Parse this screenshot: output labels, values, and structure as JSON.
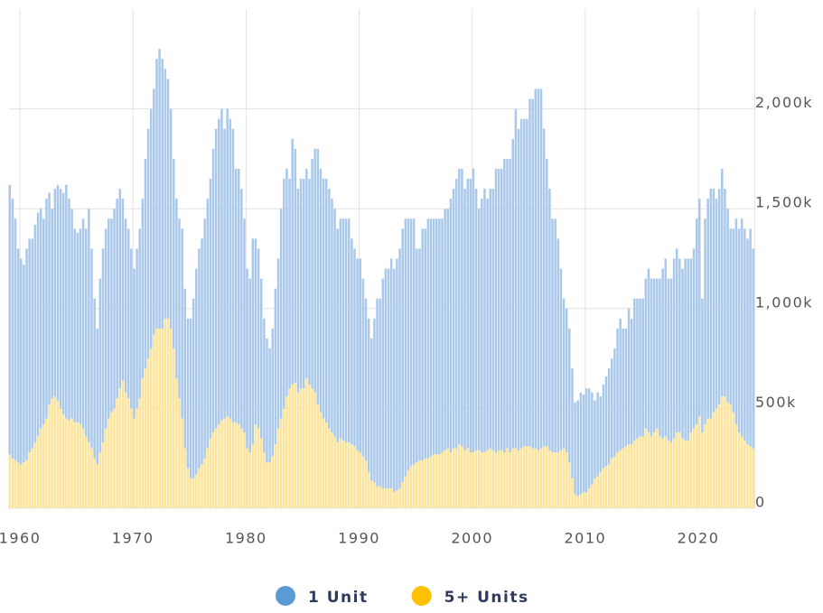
{
  "chart_data": {
    "type": "stacked-bar",
    "stacking": "normal",
    "x": [
      1959,
      1959.25,
      1959.5,
      1959.75,
      1960,
      1960.25,
      1960.5,
      1960.75,
      1961,
      1961.25,
      1961.5,
      1961.75,
      1962,
      1962.25,
      1962.5,
      1962.75,
      1963,
      1963.25,
      1963.5,
      1963.75,
      1964,
      1964.25,
      1964.5,
      1964.75,
      1965,
      1965.25,
      1965.5,
      1965.75,
      1966,
      1966.25,
      1966.5,
      1966.75,
      1967,
      1967.25,
      1967.5,
      1967.75,
      1968,
      1968.25,
      1968.5,
      1968.75,
      1969,
      1969.25,
      1969.5,
      1969.75,
      1970,
      1970.25,
      1970.5,
      1970.75,
      1971,
      1971.25,
      1971.5,
      1971.75,
      1972,
      1972.25,
      1972.5,
      1972.75,
      1973,
      1973.25,
      1973.5,
      1973.75,
      1974,
      1974.25,
      1974.5,
      1974.75,
      1975,
      1975.25,
      1975.5,
      1975.75,
      1976,
      1976.25,
      1976.5,
      1976.75,
      1977,
      1977.25,
      1977.5,
      1977.75,
      1978,
      1978.25,
      1978.5,
      1978.75,
      1979,
      1979.25,
      1979.5,
      1979.75,
      1980,
      1980.25,
      1980.5,
      1980.75,
      1981,
      1981.25,
      1981.5,
      1981.75,
      1982,
      1982.25,
      1982.5,
      1982.75,
      1983,
      1983.25,
      1983.5,
      1983.75,
      1984,
      1984.25,
      1984.5,
      1984.75,
      1985,
      1985.25,
      1985.5,
      1985.75,
      1986,
      1986.25,
      1986.5,
      1986.75,
      1987,
      1987.25,
      1987.5,
      1987.75,
      1988,
      1988.25,
      1988.5,
      1988.75,
      1989,
      1989.25,
      1989.5,
      1989.75,
      1990,
      1990.25,
      1990.5,
      1990.75,
      1991,
      1991.25,
      1991.5,
      1991.75,
      1992,
      1992.25,
      1992.5,
      1992.75,
      1993,
      1993.25,
      1993.5,
      1993.75,
      1994,
      1994.25,
      1994.5,
      1994.75,
      1995,
      1995.25,
      1995.5,
      1995.75,
      1996,
      1996.25,
      1996.5,
      1996.75,
      1997,
      1997.25,
      1997.5,
      1997.75,
      1998,
      1998.25,
      1998.5,
      1998.75,
      1999,
      1999.25,
      1999.5,
      1999.75,
      2000,
      2000.25,
      2000.5,
      2000.75,
      2001,
      2001.25,
      2001.5,
      2001.75,
      2002,
      2002.25,
      2002.5,
      2002.75,
      2003,
      2003.25,
      2003.5,
      2003.75,
      2004,
      2004.25,
      2004.5,
      2004.75,
      2005,
      2005.25,
      2005.5,
      2005.75,
      2006,
      2006.25,
      2006.5,
      2006.75,
      2007,
      2007.25,
      2007.5,
      2007.75,
      2008,
      2008.25,
      2008.5,
      2008.75,
      2009,
      2009.25,
      2009.5,
      2009.75,
      2010,
      2010.25,
      2010.5,
      2010.75,
      2011,
      2011.25,
      2011.5,
      2011.75,
      2012,
      2012.25,
      2012.5,
      2012.75,
      2013,
      2013.25,
      2013.5,
      2013.75,
      2014,
      2014.25,
      2014.5,
      2014.75,
      2015,
      2015.25,
      2015.5,
      2015.75,
      2016,
      2016.25,
      2016.5,
      2016.75,
      2017,
      2017.25,
      2017.5,
      2017.75,
      2018,
      2018.25,
      2018.5,
      2018.75,
      2019,
      2019.25,
      2019.5,
      2019.75,
      2020,
      2020.25,
      2020.5,
      2020.75,
      2021,
      2021.25,
      2021.5,
      2021.75,
      2022,
      2022.25,
      2022.5,
      2022.75,
      2023,
      2023.25,
      2023.5,
      2023.75,
      2024,
      2024.25,
      2024.5,
      2024.75
    ],
    "series": [
      {
        "name": "1 Unit",
        "color": "#5b9bd5",
        "bar_color": "#a9c8ea",
        "values": [
          1350,
          1300,
          1210,
          1070,
          1030,
          990,
          1060,
          1070,
          1050,
          1090,
          1120,
          1100,
          1030,
          1100,
          1060,
          950,
          1040,
          1080,
          1100,
          1110,
          1170,
          1110,
          1050,
          970,
          950,
          980,
          1050,
          1040,
          1170,
          1000,
          800,
          680,
          870,
          970,
          1000,
          1000,
          970,
          1000,
          1000,
          1000,
          910,
          870,
          850,
          800,
          750,
          800,
          850,
          900,
          1050,
          1150,
          1200,
          1230,
          1350,
          1400,
          1350,
          1250,
          1200,
          1100,
          950,
          900,
          900,
          950,
          800,
          750,
          800,
          900,
          1030,
          1100,
          1130,
          1200,
          1250,
          1300,
          1420,
          1500,
          1530,
          1560,
          1450,
          1540,
          1500,
          1470,
          1270,
          1280,
          1200,
          1070,
          900,
          870,
          1030,
          930,
          900,
          800,
          670,
          620,
          570,
          640,
          780,
          850,
          1050,
          1150,
          1140,
          1050,
          1230,
          1170,
          1020,
          1050,
          1050,
          1050,
          1030,
          1150,
          1220,
          1280,
          1220,
          1200,
          1220,
          1200,
          1170,
          1140,
          1070,
          1100,
          1110,
          1120,
          1120,
          1030,
          990,
          960,
          970,
          890,
          810,
          770,
          710,
          820,
          940,
          940,
          1050,
          1100,
          1100,
          1150,
          1120,
          1160,
          1200,
          1270,
          1290,
          1260,
          1240,
          1230,
          1070,
          1060,
          1160,
          1150,
          1200,
          1190,
          1180,
          1180,
          1180,
          1170,
          1210,
          1200,
          1270,
          1300,
          1350,
          1380,
          1390,
          1310,
          1350,
          1370,
          1420,
          1310,
          1210,
          1270,
          1320,
          1260,
          1300,
          1310,
          1420,
          1410,
          1410,
          1470,
          1450,
          1470,
          1550,
          1700,
          1610,
          1650,
          1640,
          1640,
          1740,
          1750,
          1800,
          1810,
          1800,
          1590,
          1440,
          1310,
          1170,
          1170,
          1070,
          910,
          750,
          720,
          670,
          550,
          460,
          480,
          510,
          490,
          520,
          500,
          460,
          390,
          420,
          380,
          420,
          450,
          480,
          500,
          540,
          620,
          660,
          600,
          590,
          680,
          630,
          710,
          700,
          690,
          690,
          750,
          820,
          790,
          770,
          750,
          790,
          850,
          890,
          810,
          820,
          900,
          920,
          870,
          850,
          910,
          910,
          870,
          900,
          1030,
          1090,
          670,
          1030,
          1100,
          1150,
          1120,
          1050,
          1080,
          1140,
          1040,
          970,
          880,
          920,
          1030,
          1020,
          1090,
          1060,
          1030,
          1090,
          1000
        ]
      },
      {
        "name": "5+ Units",
        "color": "#ffc000",
        "bar_color": "#fde49b",
        "values": [
          270,
          250,
          240,
          230,
          220,
          230,
          240,
          280,
          300,
          330,
          360,
          400,
          420,
          450,
          520,
          550,
          560,
          540,
          500,
          470,
          450,
          440,
          450,
          430,
          430,
          420,
          400,
          360,
          330,
          300,
          250,
          220,
          280,
          330,
          400,
          450,
          480,
          500,
          550,
          600,
          640,
          580,
          550,
          500,
          450,
          500,
          550,
          650,
          700,
          750,
          800,
          870,
          900,
          900,
          900,
          950,
          950,
          900,
          800,
          650,
          550,
          450,
          300,
          200,
          150,
          150,
          170,
          200,
          220,
          250,
          300,
          350,
          380,
          400,
          420,
          440,
          450,
          460,
          450,
          430,
          430,
          420,
          400,
          380,
          300,
          280,
          320,
          420,
          400,
          350,
          280,
          230,
          230,
          260,
          320,
          400,
          450,
          500,
          560,
          600,
          620,
          630,
          580,
          600,
          600,
          650,
          620,
          600,
          580,
          520,
          480,
          450,
          430,
          400,
          380,
          360,
          330,
          350,
          340,
          330,
          330,
          320,
          310,
          290,
          280,
          260,
          240,
          180,
          140,
          130,
          110,
          110,
          100,
          100,
          100,
          100,
          80,
          90,
          100,
          130,
          160,
          190,
          210,
          220,
          230,
          240,
          240,
          250,
          250,
          260,
          270,
          270,
          270,
          280,
          290,
          300,
          280,
          300,
          300,
          320,
          310,
          290,
          300,
          280,
          280,
          290,
          290,
          280,
          280,
          290,
          300,
          290,
          280,
          290,
          290,
          280,
          300,
          280,
          300,
          300,
          290,
          300,
          310,
          310,
          310,
          300,
          300,
          290,
          300,
          310,
          310,
          290,
          280,
          280,
          280,
          290,
          300,
          280,
          230,
          150,
          70,
          60,
          70,
          80,
          80,
          100,
          120,
          150,
          160,
          180,
          200,
          210,
          220,
          250,
          260,
          280,
          290,
          300,
          310,
          320,
          320,
          340,
          350,
          360,
          360,
          400,
          380,
          360,
          380,
          400,
          360,
          350,
          360,
          340,
          330,
          350,
          380,
          380,
          350,
          340,
          340,
          380,
          400,
          420,
          460,
          380,
          420,
          450,
          450,
          480,
          500,
          520,
          560,
          560,
          530,
          520,
          480,
          420,
          380,
          360,
          340,
          320,
          310,
          300
        ]
      }
    ],
    "xlim": [
      1959,
      2025
    ],
    "xticks": [
      1960,
      1970,
      1980,
      1990,
      2000,
      2010,
      2020
    ],
    "ylim": [
      0,
      2500
    ],
    "yticks": [
      0,
      {
        "value": 500,
        "label": "500k"
      },
      {
        "value": 1000,
        "label": "1,000k"
      },
      {
        "value": 1500,
        "label": "1,500k"
      },
      {
        "value": 2000,
        "label": "2,000k"
      }
    ],
    "grid": true,
    "legend": "bottom"
  }
}
